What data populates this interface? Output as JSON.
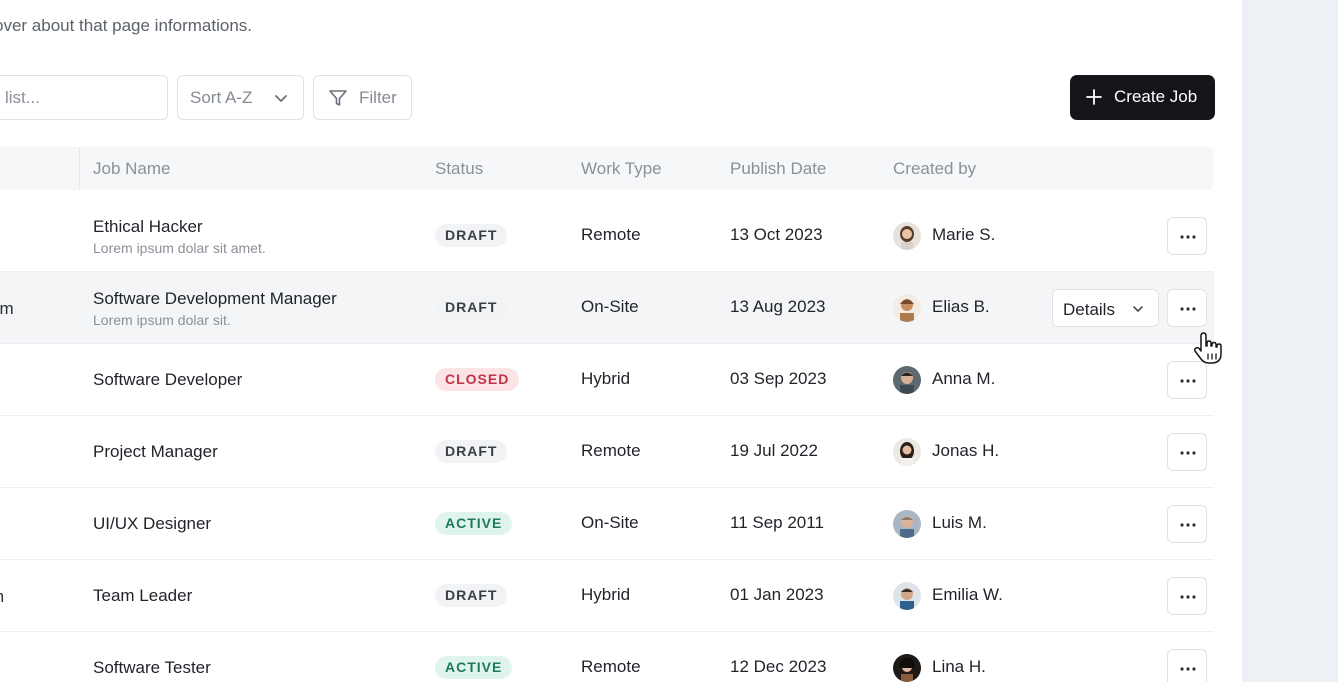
{
  "header": {
    "subtitle": "over about that page informations."
  },
  "toolbar": {
    "search_placeholder": "list...",
    "sort_label": "Sort A-Z",
    "filter_label": "Filter",
    "create_label": "Create Job"
  },
  "table": {
    "columns": {
      "job_name": "Job Name",
      "status": "Status",
      "work_type": "Work Type",
      "publish_date": "Publish Date",
      "created_by": "Created by"
    },
    "rows": [
      {
        "cutoff": "",
        "name": "Ethical Hacker",
        "desc": "Lorem ipsum dolar sit amet.",
        "status": "DRAFT",
        "work_type": "Remote",
        "publish_date": "13 Oct 2023",
        "creator": "Marie S."
      },
      {
        "cutoff": "um",
        "name": "Software Development Manager",
        "desc": "Lorem ipsum dolar sit.",
        "status": "DRAFT",
        "work_type": "On-Site",
        "publish_date": "13 Aug 2023",
        "creator": "Elias B."
      },
      {
        "cutoff": "",
        "name": "Software Developer",
        "desc": "",
        "status": "CLOSED",
        "work_type": "Hybrid",
        "publish_date": "03 Sep 2023",
        "creator": "Anna M."
      },
      {
        "cutoff": "",
        "name": "Project Manager",
        "desc": "",
        "status": "DRAFT",
        "work_type": "Remote",
        "publish_date": "19 Jul 2022",
        "creator": "Jonas H."
      },
      {
        "cutoff": "",
        "name": "UI/UX Designer",
        "desc": "",
        "status": "ACTIVE",
        "work_type": "On-Site",
        "publish_date": "11 Sep 2011",
        "creator": "Luis M."
      },
      {
        "cutoff": "m",
        "name": "Team Leader",
        "desc": "",
        "status": "DRAFT",
        "work_type": "Hybrid",
        "publish_date": "01 Jan 2023",
        "creator": "Emilia W."
      },
      {
        "cutoff": "",
        "name": "Software Tester",
        "desc": "",
        "status": "ACTIVE",
        "work_type": "Remote",
        "publish_date": "12 Dec 2023",
        "creator": "Lina H."
      }
    ],
    "details_label": "Details"
  },
  "colors": {
    "accent_dark": "#141518",
    "draft_bg": "#f2f3f5",
    "closed_bg": "#fbe3e6",
    "closed_fg": "#c2334a",
    "active_bg": "#e0f4ee",
    "active_fg": "#1d7a5e",
    "side_panel": "#edf0f4"
  },
  "icons": {
    "sort_chevron": "chevron-down-icon",
    "filter": "filter-icon",
    "create": "plus-icon",
    "more": "more-horizontal-icon",
    "cursor": "hand-pointer-icon"
  }
}
